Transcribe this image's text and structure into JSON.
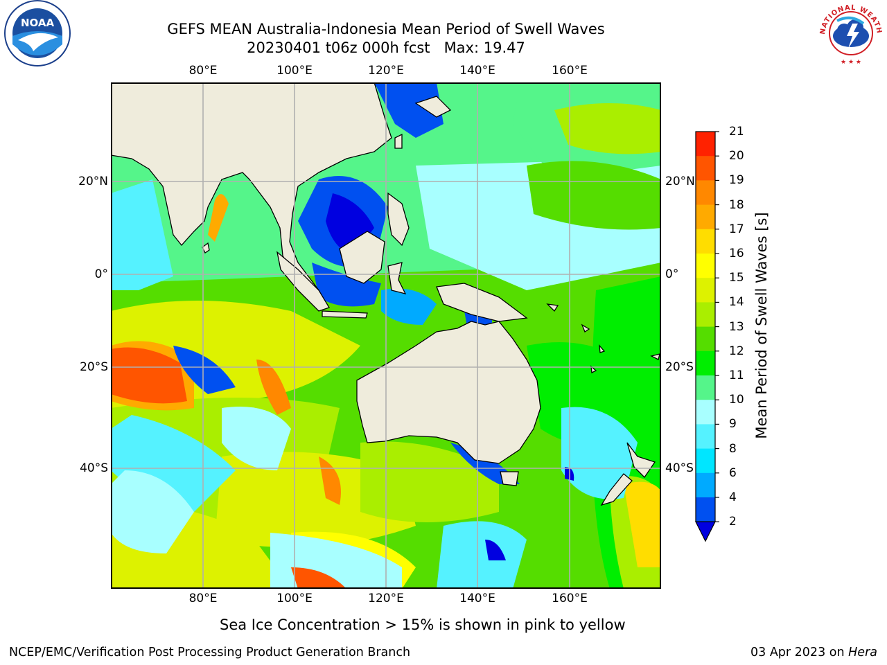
{
  "header": {
    "title_line1": "GEFS MEAN Australia-Indonesia Mean Period of Swell Waves",
    "title_line2": "20230401 t06z 000h fcst   Max: 19.47"
  },
  "logos": {
    "noaa_text": "NOAA",
    "noaa_ring_text": "NATIONAL OCEANIC AND ATMOSPHERIC ADMINISTRATION · U.S. DEPARTMENT OF COMMERCE",
    "nws_ring_text": "NATIONAL WEATHER SERVICE"
  },
  "map": {
    "lon_ticks": [
      "80°E",
      "100°E",
      "120°E",
      "140°E",
      "160°E"
    ],
    "lat_ticks_left": [
      "20°N",
      "0°",
      "20°S",
      "40°S"
    ],
    "lat_ticks_right": [
      "20°N",
      "0°",
      "20°S",
      "40°S"
    ],
    "land_color": "#efecdc",
    "grid_color": "#b0b0b0"
  },
  "colorbar": {
    "label": "Mean Period of Swell Waves [s]",
    "ticks": [
      "2",
      "4",
      "6",
      "8",
      "9",
      "10",
      "11",
      "12",
      "13",
      "14",
      "15",
      "16",
      "17",
      "18",
      "19",
      "20",
      "21"
    ],
    "colors": [
      "#0050f0",
      "#00aaff",
      "#00e6ff",
      "#55f2ff",
      "#a8ffff",
      "#55f58a",
      "#00ee00",
      "#55dd00",
      "#aaee00",
      "#ddf200",
      "#ffff00",
      "#ffdd00",
      "#ffaa00",
      "#ff8800",
      "#ff5500",
      "#ff2200"
    ],
    "extend_min_color": "#0000e0"
  },
  "note": "Sea Ice Concentration > 15% is shown in pink to yellow",
  "footer": {
    "left": "NCEP/EMC/Verification Post Processing Product Generation Branch",
    "right_date": "03 Apr 2023 on ",
    "right_host": "Hera"
  }
}
